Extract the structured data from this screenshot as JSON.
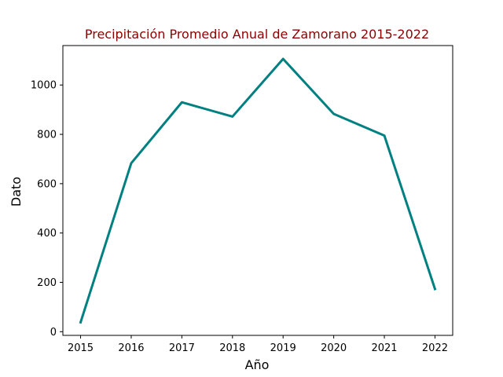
{
  "chart_data": {
    "type": "line",
    "title": "Precipitación Promedio Anual de Zamorano 2015-2022",
    "xlabel": "Año",
    "ylabel": "Dato",
    "x": [
      2015,
      2016,
      2017,
      2018,
      2019,
      2020,
      2021,
      2022
    ],
    "x_tick_labels": [
      "2015",
      "2016",
      "2017",
      "2018",
      "2019",
      "2020",
      "2021",
      "2022"
    ],
    "y_ticks": [
      0,
      200,
      400,
      600,
      800,
      1000
    ],
    "y_tick_labels": [
      "0",
      "200",
      "400",
      "600",
      "800",
      "1000"
    ],
    "series": [
      {
        "values": [
          38,
          683,
          930,
          872,
          1106,
          883,
          795,
          173
        ]
      }
    ],
    "xlim": [
      2014.65,
      2022.35
    ],
    "ylim": [
      -15,
      1160
    ],
    "grid": false,
    "colors": {
      "line": "#008080",
      "title": "#8b0000",
      "axes": "#000000"
    }
  }
}
